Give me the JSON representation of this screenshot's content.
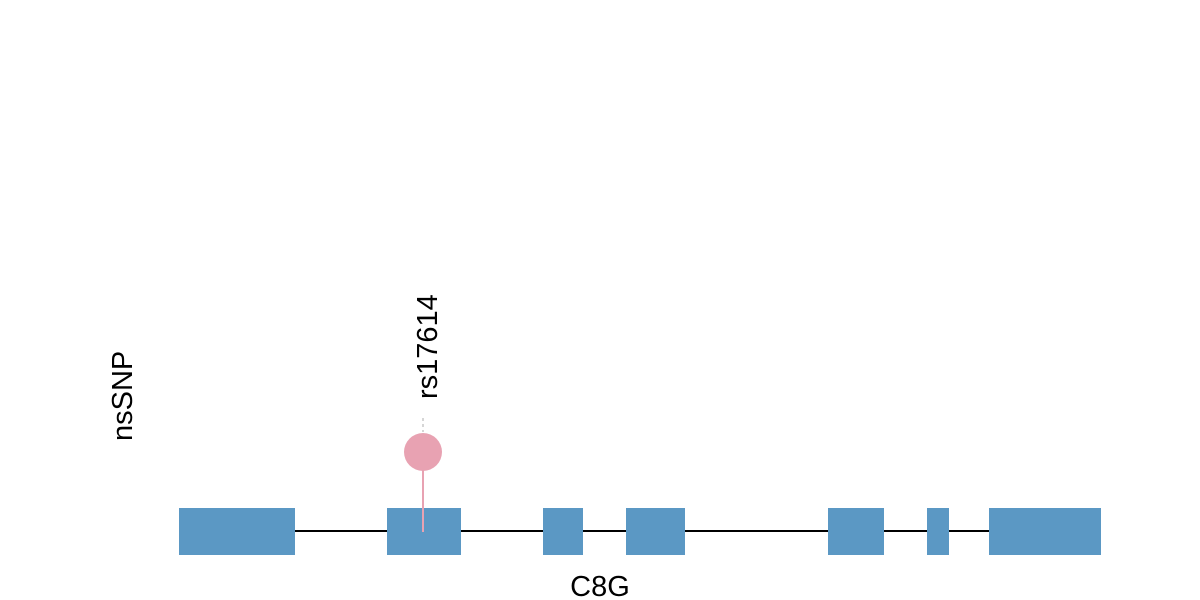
{
  "track_label": "nsSNP",
  "gene": {
    "name": "C8G",
    "exon_color": "#5b98c4",
    "intron_color": "#000000"
  },
  "variants": [
    {
      "id": "rs17614",
      "color": "#e8a2b2"
    }
  ]
}
